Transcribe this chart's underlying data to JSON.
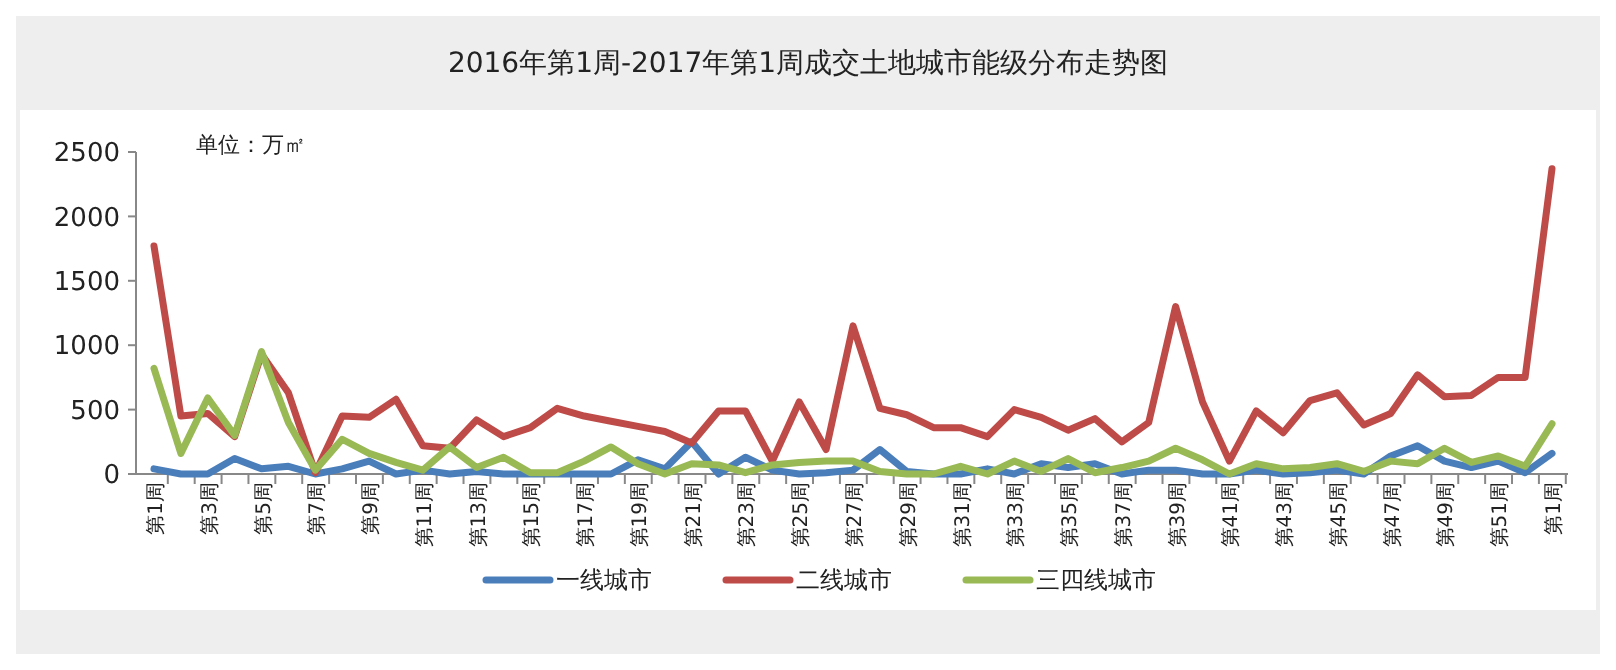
{
  "chart_data": {
    "type": "line",
    "title": "2016年第1周-2017年第1周成交土地城市能级分布走势图",
    "annotations": [
      "单位：万㎡"
    ],
    "categories": [
      "第1周",
      null,
      "第3周",
      null,
      "第5周",
      null,
      "第7周",
      null,
      "第9周",
      null,
      "第11周",
      null,
      "第13周",
      null,
      "第15周",
      null,
      "第17周",
      null,
      "第19周",
      null,
      "第21周",
      null,
      "第23周",
      null,
      "第25周",
      null,
      "第27周",
      null,
      "第29周",
      null,
      "第31周",
      null,
      "第33周",
      null,
      "第35周",
      null,
      "第37周",
      null,
      "第39周",
      null,
      "第41周",
      null,
      "第43周",
      null,
      "第45周",
      null,
      "第47周",
      null,
      "第49周",
      null,
      "第51周",
      null,
      "第1周"
    ],
    "series": [
      {
        "name": "一线城市",
        "color": "#4a7ebb",
        "values": [
          40,
          0,
          0,
          120,
          40,
          60,
          0,
          40,
          100,
          0,
          30,
          0,
          20,
          0,
          0,
          0,
          0,
          0,
          110,
          40,
          250,
          0,
          130,
          30,
          0,
          10,
          30,
          190,
          20,
          0,
          0,
          40,
          0,
          80,
          50,
          80,
          0,
          30,
          30,
          0,
          0,
          30,
          0,
          10,
          30,
          0,
          140,
          220,
          100,
          50,
          100,
          10,
          160
        ]
      },
      {
        "name": "二线城市",
        "color": "#be4b48",
        "values": [
          1770,
          450,
          470,
          290,
          930,
          630,
          10,
          450,
          440,
          580,
          220,
          200,
          420,
          290,
          360,
          510,
          450,
          410,
          370,
          330,
          240,
          490,
          490,
          100,
          560,
          190,
          1150,
          510,
          460,
          360,
          360,
          290,
          500,
          440,
          340,
          430,
          250,
          400,
          1300,
          560,
          100,
          490,
          320,
          570,
          630,
          380,
          470,
          770,
          600,
          610,
          750,
          750,
          2370
        ]
      },
      {
        "name": "三四线城市",
        "color": "#98b954",
        "values": [
          820,
          160,
          590,
          300,
          950,
          400,
          30,
          270,
          160,
          90,
          30,
          210,
          50,
          130,
          10,
          10,
          100,
          210,
          80,
          0,
          80,
          70,
          10,
          70,
          90,
          100,
          100,
          20,
          0,
          0,
          60,
          0,
          100,
          20,
          120,
          10,
          50,
          100,
          200,
          110,
          0,
          80,
          40,
          50,
          80,
          20,
          100,
          80,
          200,
          90,
          140,
          60,
          390
        ]
      }
    ],
    "ylim": [
      0,
      2500
    ],
    "yticks": [
      0,
      500,
      1000,
      1500,
      2000,
      2500
    ],
    "grid": false,
    "legend": "bottom",
    "line_style": "solid",
    "marker": "none"
  }
}
